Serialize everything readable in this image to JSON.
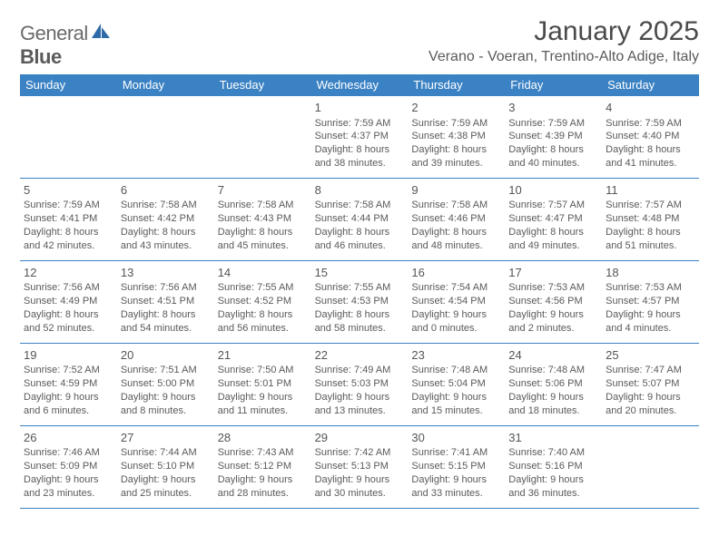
{
  "logo": {
    "text1": "General",
    "text2": "Blue"
  },
  "title": "January 2025",
  "location": "Verano - Voeran, Trentino-Alto Adige, Italy",
  "colors": {
    "header_bg": "#3b82c4",
    "header_text": "#ffffff",
    "rule": "#3b82c4",
    "body_text": "#5a5a5a",
    "title_text": "#4a4a4a"
  },
  "day_names": [
    "Sunday",
    "Monday",
    "Tuesday",
    "Wednesday",
    "Thursday",
    "Friday",
    "Saturday"
  ],
  "weeks": [
    [
      null,
      null,
      null,
      {
        "n": "1",
        "sr": "Sunrise: 7:59 AM",
        "ss": "Sunset: 4:37 PM",
        "d1": "Daylight: 8 hours",
        "d2": "and 38 minutes."
      },
      {
        "n": "2",
        "sr": "Sunrise: 7:59 AM",
        "ss": "Sunset: 4:38 PM",
        "d1": "Daylight: 8 hours",
        "d2": "and 39 minutes."
      },
      {
        "n": "3",
        "sr": "Sunrise: 7:59 AM",
        "ss": "Sunset: 4:39 PM",
        "d1": "Daylight: 8 hours",
        "d2": "and 40 minutes."
      },
      {
        "n": "4",
        "sr": "Sunrise: 7:59 AM",
        "ss": "Sunset: 4:40 PM",
        "d1": "Daylight: 8 hours",
        "d2": "and 41 minutes."
      }
    ],
    [
      {
        "n": "5",
        "sr": "Sunrise: 7:59 AM",
        "ss": "Sunset: 4:41 PM",
        "d1": "Daylight: 8 hours",
        "d2": "and 42 minutes."
      },
      {
        "n": "6",
        "sr": "Sunrise: 7:58 AM",
        "ss": "Sunset: 4:42 PM",
        "d1": "Daylight: 8 hours",
        "d2": "and 43 minutes."
      },
      {
        "n": "7",
        "sr": "Sunrise: 7:58 AM",
        "ss": "Sunset: 4:43 PM",
        "d1": "Daylight: 8 hours",
        "d2": "and 45 minutes."
      },
      {
        "n": "8",
        "sr": "Sunrise: 7:58 AM",
        "ss": "Sunset: 4:44 PM",
        "d1": "Daylight: 8 hours",
        "d2": "and 46 minutes."
      },
      {
        "n": "9",
        "sr": "Sunrise: 7:58 AM",
        "ss": "Sunset: 4:46 PM",
        "d1": "Daylight: 8 hours",
        "d2": "and 48 minutes."
      },
      {
        "n": "10",
        "sr": "Sunrise: 7:57 AM",
        "ss": "Sunset: 4:47 PM",
        "d1": "Daylight: 8 hours",
        "d2": "and 49 minutes."
      },
      {
        "n": "11",
        "sr": "Sunrise: 7:57 AM",
        "ss": "Sunset: 4:48 PM",
        "d1": "Daylight: 8 hours",
        "d2": "and 51 minutes."
      }
    ],
    [
      {
        "n": "12",
        "sr": "Sunrise: 7:56 AM",
        "ss": "Sunset: 4:49 PM",
        "d1": "Daylight: 8 hours",
        "d2": "and 52 minutes."
      },
      {
        "n": "13",
        "sr": "Sunrise: 7:56 AM",
        "ss": "Sunset: 4:51 PM",
        "d1": "Daylight: 8 hours",
        "d2": "and 54 minutes."
      },
      {
        "n": "14",
        "sr": "Sunrise: 7:55 AM",
        "ss": "Sunset: 4:52 PM",
        "d1": "Daylight: 8 hours",
        "d2": "and 56 minutes."
      },
      {
        "n": "15",
        "sr": "Sunrise: 7:55 AM",
        "ss": "Sunset: 4:53 PM",
        "d1": "Daylight: 8 hours",
        "d2": "and 58 minutes."
      },
      {
        "n": "16",
        "sr": "Sunrise: 7:54 AM",
        "ss": "Sunset: 4:54 PM",
        "d1": "Daylight: 9 hours",
        "d2": "and 0 minutes."
      },
      {
        "n": "17",
        "sr": "Sunrise: 7:53 AM",
        "ss": "Sunset: 4:56 PM",
        "d1": "Daylight: 9 hours",
        "d2": "and 2 minutes."
      },
      {
        "n": "18",
        "sr": "Sunrise: 7:53 AM",
        "ss": "Sunset: 4:57 PM",
        "d1": "Daylight: 9 hours",
        "d2": "and 4 minutes."
      }
    ],
    [
      {
        "n": "19",
        "sr": "Sunrise: 7:52 AM",
        "ss": "Sunset: 4:59 PM",
        "d1": "Daylight: 9 hours",
        "d2": "and 6 minutes."
      },
      {
        "n": "20",
        "sr": "Sunrise: 7:51 AM",
        "ss": "Sunset: 5:00 PM",
        "d1": "Daylight: 9 hours",
        "d2": "and 8 minutes."
      },
      {
        "n": "21",
        "sr": "Sunrise: 7:50 AM",
        "ss": "Sunset: 5:01 PM",
        "d1": "Daylight: 9 hours",
        "d2": "and 11 minutes."
      },
      {
        "n": "22",
        "sr": "Sunrise: 7:49 AM",
        "ss": "Sunset: 5:03 PM",
        "d1": "Daylight: 9 hours",
        "d2": "and 13 minutes."
      },
      {
        "n": "23",
        "sr": "Sunrise: 7:48 AM",
        "ss": "Sunset: 5:04 PM",
        "d1": "Daylight: 9 hours",
        "d2": "and 15 minutes."
      },
      {
        "n": "24",
        "sr": "Sunrise: 7:48 AM",
        "ss": "Sunset: 5:06 PM",
        "d1": "Daylight: 9 hours",
        "d2": "and 18 minutes."
      },
      {
        "n": "25",
        "sr": "Sunrise: 7:47 AM",
        "ss": "Sunset: 5:07 PM",
        "d1": "Daylight: 9 hours",
        "d2": "and 20 minutes."
      }
    ],
    [
      {
        "n": "26",
        "sr": "Sunrise: 7:46 AM",
        "ss": "Sunset: 5:09 PM",
        "d1": "Daylight: 9 hours",
        "d2": "and 23 minutes."
      },
      {
        "n": "27",
        "sr": "Sunrise: 7:44 AM",
        "ss": "Sunset: 5:10 PM",
        "d1": "Daylight: 9 hours",
        "d2": "and 25 minutes."
      },
      {
        "n": "28",
        "sr": "Sunrise: 7:43 AM",
        "ss": "Sunset: 5:12 PM",
        "d1": "Daylight: 9 hours",
        "d2": "and 28 minutes."
      },
      {
        "n": "29",
        "sr": "Sunrise: 7:42 AM",
        "ss": "Sunset: 5:13 PM",
        "d1": "Daylight: 9 hours",
        "d2": "and 30 minutes."
      },
      {
        "n": "30",
        "sr": "Sunrise: 7:41 AM",
        "ss": "Sunset: 5:15 PM",
        "d1": "Daylight: 9 hours",
        "d2": "and 33 minutes."
      },
      {
        "n": "31",
        "sr": "Sunrise: 7:40 AM",
        "ss": "Sunset: 5:16 PM",
        "d1": "Daylight: 9 hours",
        "d2": "and 36 minutes."
      },
      null
    ]
  ]
}
